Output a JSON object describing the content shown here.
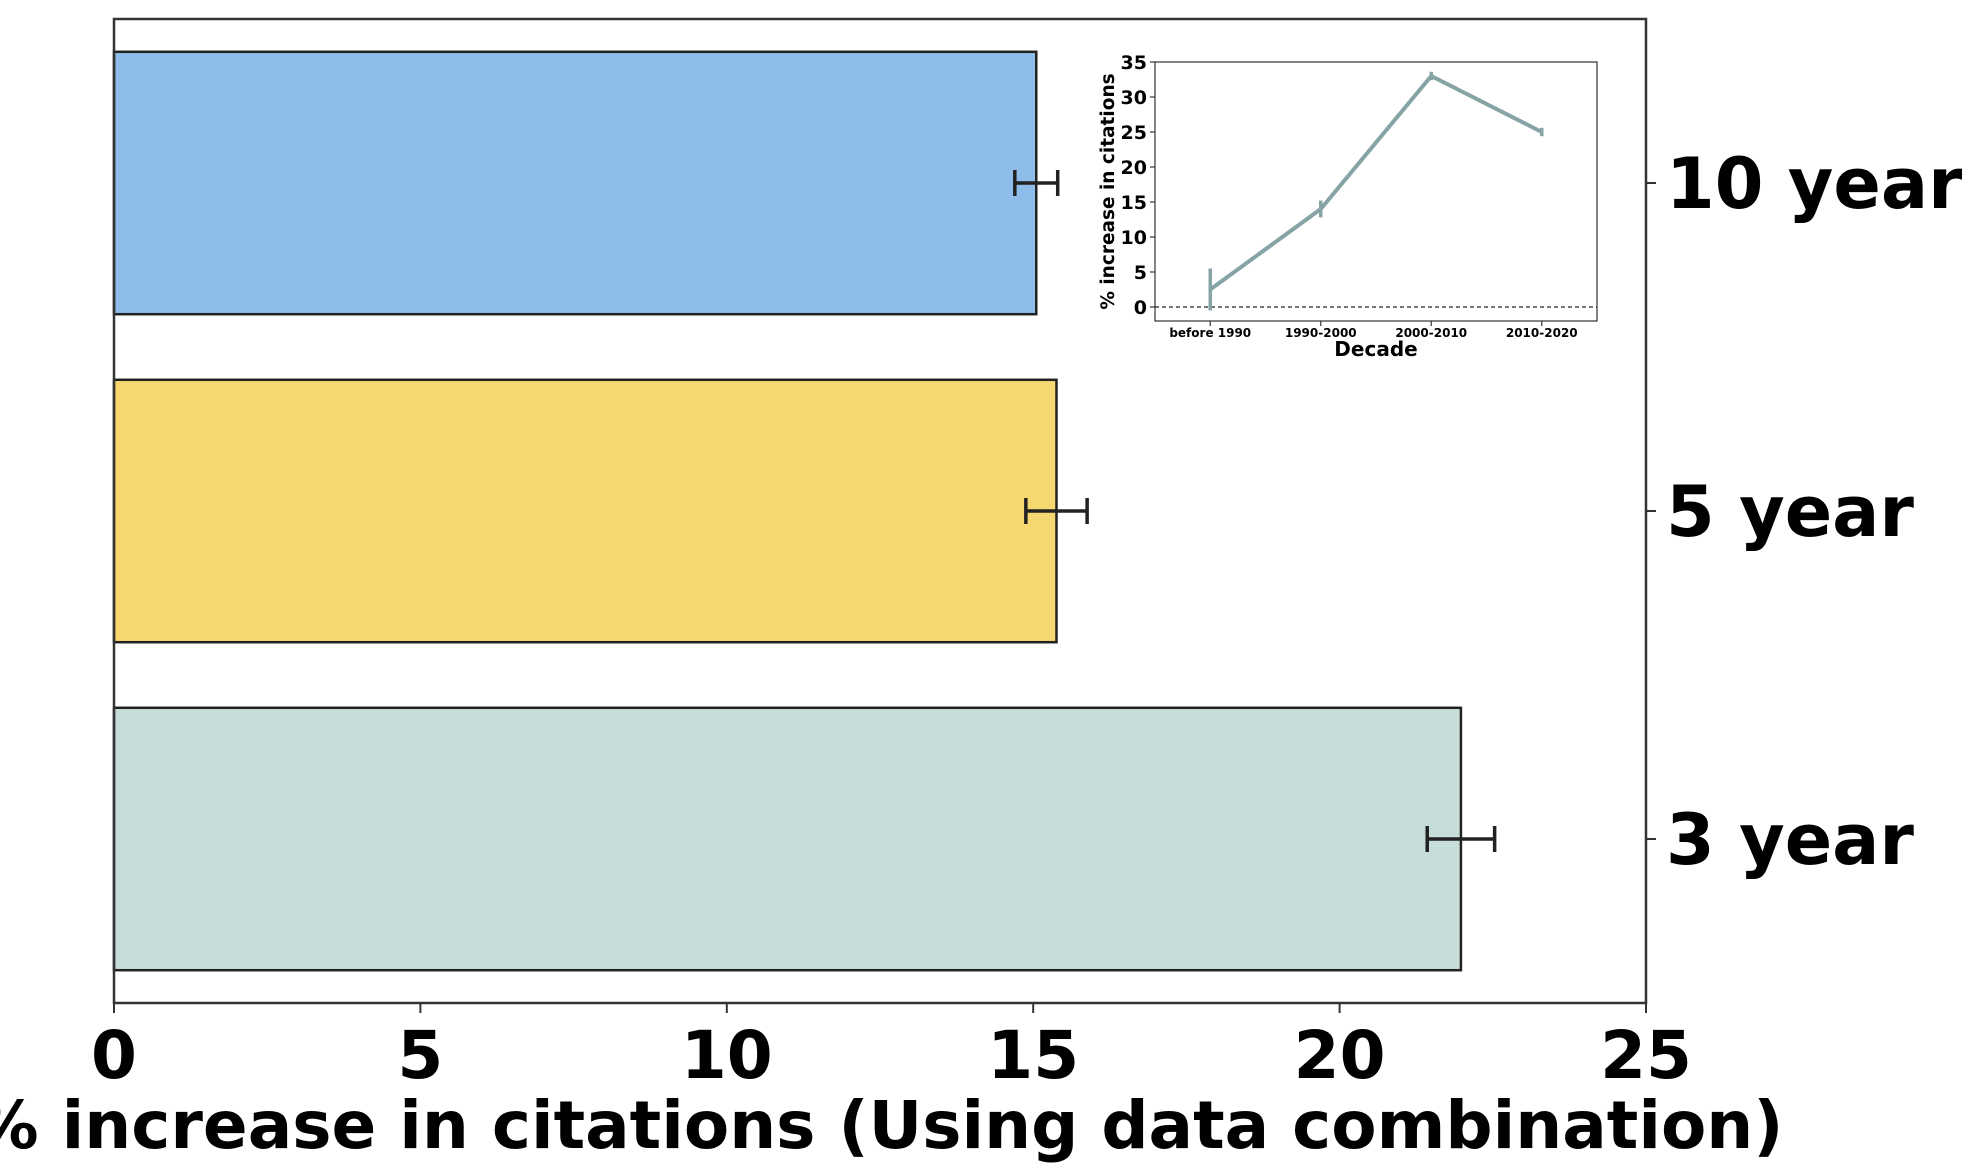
{
  "chart_data": [
    {
      "type": "bar",
      "orientation": "horizontal",
      "categories": [
        "10 year",
        "5 year",
        "3 year"
      ],
      "values": [
        15.05,
        15.38,
        21.98
      ],
      "errors": [
        0.35,
        0.5,
        0.55
      ],
      "colors": [
        "#8ebde9",
        "#f7d870",
        "#c6ddda"
      ],
      "xlabel": "% increase in citations (Using data combination)",
      "ylabel": "",
      "title": "",
      "xlim": [
        0,
        25
      ],
      "xticks": [
        0,
        5,
        10,
        15,
        20,
        25
      ],
      "grid": false,
      "tick_position_y": "right"
    },
    {
      "type": "line",
      "placement": "top-right inset",
      "categories": [
        "before 1990",
        "1990-2000",
        "2000-2010",
        "2010-2020"
      ],
      "values": [
        2.5,
        14,
        33,
        25
      ],
      "errors": [
        3,
        1.2,
        0.6,
        0.6
      ],
      "color": "#86a3a6",
      "xlabel": "Decade",
      "ylabel": "% increase in citations",
      "title": "",
      "ylim": [
        -2,
        35
      ],
      "yticks": [
        0,
        5,
        10,
        15,
        20,
        25,
        30,
        35
      ],
      "reference_line": 0,
      "grid": false
    }
  ]
}
